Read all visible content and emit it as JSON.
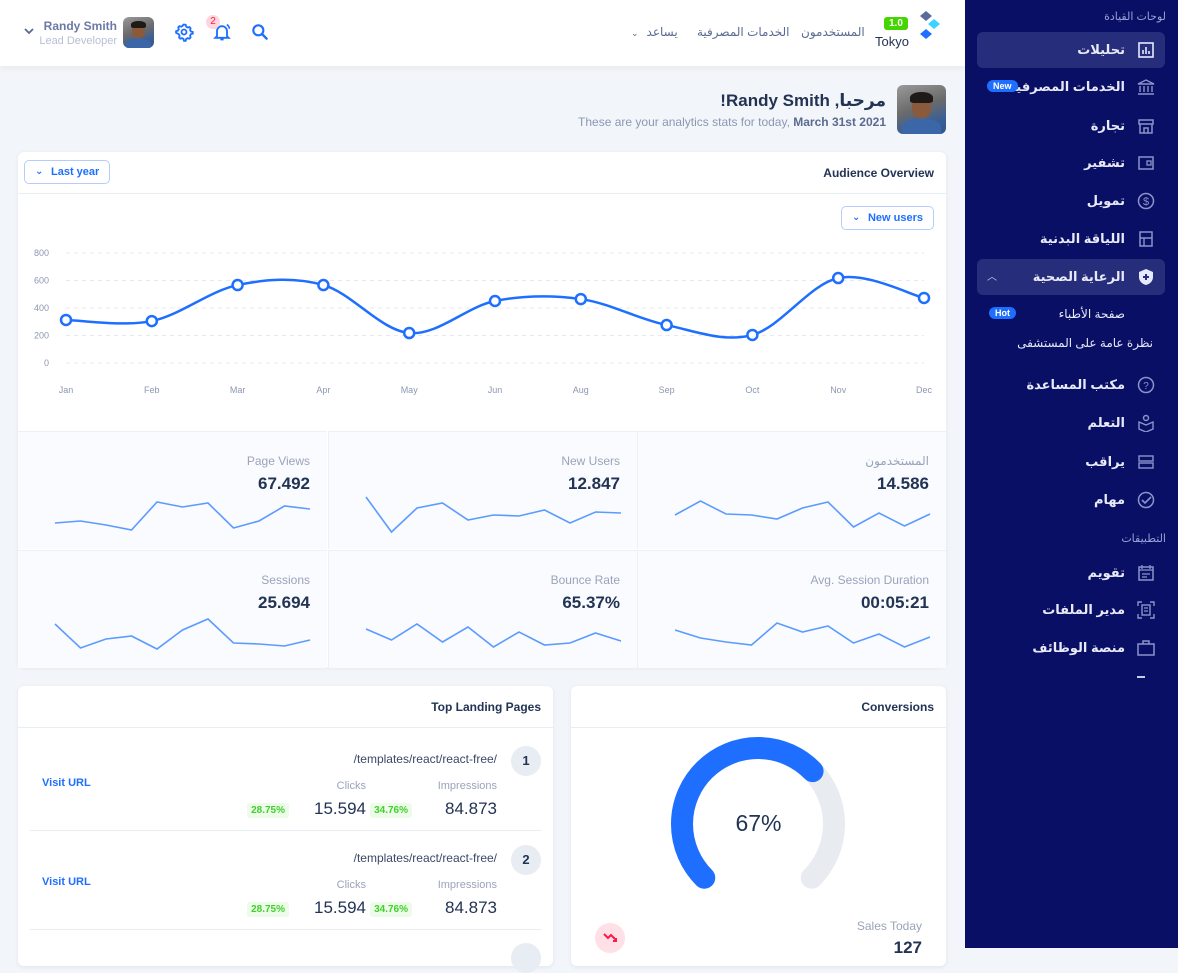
{
  "header": {
    "user_name": "Randy Smith",
    "user_role": "Lead Developer",
    "notification_count": "2",
    "nav": [
      "المستخدمون",
      "الخدمات المصرفية",
      "يساعد"
    ],
    "logo_version": "1.0",
    "logo_name": "Tokyo"
  },
  "welcome": {
    "title": "مرحبا, Randy Smith!",
    "subtitle_prefix": "These are your analytics stats for today,",
    "subtitle_date": "March 31st 2021"
  },
  "audience": {
    "title": "Audience Overview",
    "period_button": "Last year",
    "metric_button": "New users"
  },
  "chart_data": {
    "type": "line",
    "title": "Audience Overview",
    "xlabel": "",
    "ylabel": "",
    "categories": [
      "Jan",
      "Feb",
      "Mar",
      "Apr",
      "May",
      "Jun",
      "Aug",
      "Sep",
      "Oct",
      "Nov",
      "Dec"
    ],
    "series": [
      {
        "name": "New users",
        "values": [
          313,
          305,
          567,
          567,
          218,
          451,
          465,
          276,
          204,
          618,
          473
        ]
      }
    ],
    "yticks": [
      0,
      200,
      400,
      600,
      800
    ],
    "ylim": [
      0,
      800
    ],
    "grid": true,
    "color": "#1e6fff"
  },
  "stats": [
    {
      "label": "المستخدمون",
      "value": "14.586",
      "spark": [
        27,
        41,
        28,
        27,
        23,
        34,
        40,
        15,
        29,
        16,
        28
      ]
    },
    {
      "label": "New Users",
      "value": "12.847",
      "spark": [
        45,
        10,
        34,
        39,
        22,
        27,
        26,
        32,
        19,
        30,
        29
      ]
    },
    {
      "label": "Page Views",
      "value": "67.492",
      "spark": [
        19,
        21,
        17,
        12,
        40,
        35,
        39,
        14,
        21,
        36,
        33
      ]
    },
    {
      "label": "Avg. Session Duration",
      "value": "00:05:21",
      "spark": [
        31,
        23,
        19,
        16,
        38,
        29,
        35,
        18,
        27,
        14,
        24
      ]
    },
    {
      "label": "Bounce Rate",
      "value": "65.37%",
      "spark": [
        32,
        21,
        37,
        19,
        34,
        14,
        29,
        16,
        18,
        28,
        20
      ]
    },
    {
      "label": "Sessions",
      "value": "25.694",
      "spark": [
        37,
        13,
        22,
        25,
        12,
        31,
        42,
        18,
        17,
        15,
        21
      ]
    }
  ],
  "landing": {
    "title": "Top Landing Pages",
    "rows": [
      {
        "num": "1",
        "path": "/templates/react/react-free/",
        "visit": "Visit URL",
        "clicks_label": "Clicks",
        "clicks_pct": "28.75%",
        "clicks": "15.594",
        "impr_label": "Impressions",
        "impr_pct": "34.76%",
        "impr": "84.873"
      },
      {
        "num": "2",
        "path": "/templates/react/react-free/",
        "visit": "Visit URL",
        "clicks_label": "Clicks",
        "clicks_pct": "28.75%",
        "clicks": "15.594",
        "impr_label": "Impressions",
        "impr_pct": "34.76%",
        "impr": "84.873"
      }
    ]
  },
  "conversions": {
    "title": "Conversions",
    "percent": 67,
    "percent_label": "67%",
    "sales_label": "Sales Today",
    "sales_value": "127"
  },
  "sidebar": {
    "section_dashboards": "لوحات القيادة",
    "items": [
      {
        "label": "تحليلات",
        "icon": "analytics-icon",
        "active": true
      },
      {
        "label": "الخدمات المصرفية",
        "icon": "bank-icon",
        "pill": "New"
      },
      {
        "label": "تجارة",
        "icon": "store-icon"
      },
      {
        "label": "تشفير",
        "icon": "wallet-icon"
      },
      {
        "label": "تمويل",
        "icon": "dollar-icon"
      },
      {
        "label": "اللياقة البدنية",
        "icon": "fitness-icon"
      },
      {
        "label": "الرعاية الصحية",
        "icon": "shield-plus-icon",
        "expanded": true
      }
    ],
    "subitems": [
      {
        "label": "صفحة الأطباء",
        "pill": "Hot"
      },
      {
        "label": "نظرة عامة على المستشفى"
      }
    ],
    "items2": [
      {
        "label": "مكتب المساعدة",
        "icon": "help-icon"
      },
      {
        "label": "التعلم",
        "icon": "learning-icon"
      },
      {
        "label": "يراقب",
        "icon": "monitor-icon"
      },
      {
        "label": "مهام",
        "icon": "tasks-icon"
      }
    ],
    "section_apps": "التطبيقات",
    "apps": [
      {
        "label": "تقويم",
        "icon": "calendar-icon"
      },
      {
        "label": "مدير الملفات",
        "icon": "file-manager-icon"
      },
      {
        "label": "منصة الوظائف",
        "icon": "jobs-icon"
      }
    ]
  }
}
